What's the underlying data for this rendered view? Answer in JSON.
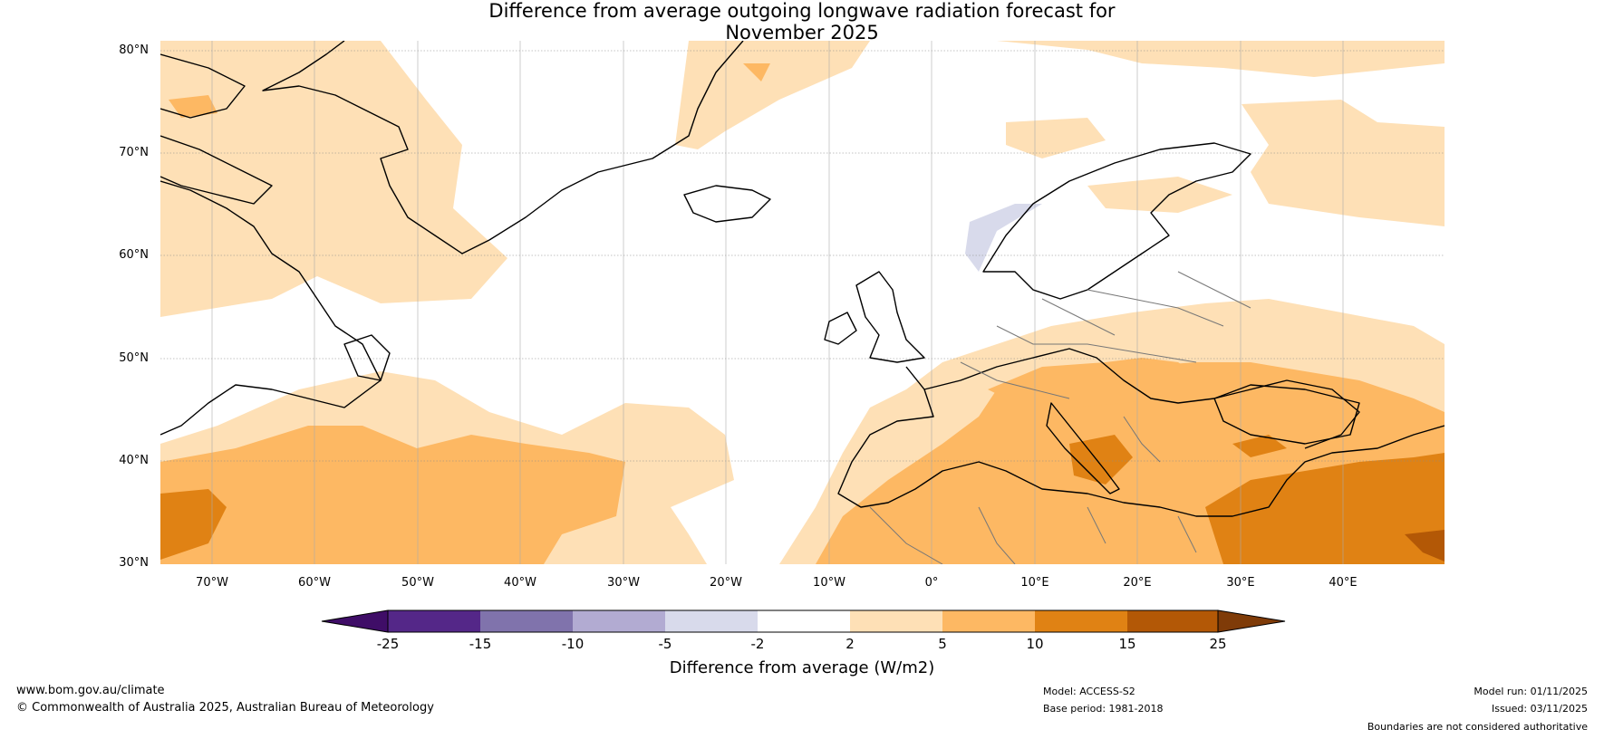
{
  "title_line1": "Difference from average outgoing longwave radiation forecast for",
  "title_line2": "November 2025",
  "lat_labels": [
    "80°N",
    "70°N",
    "60°N",
    "50°N",
    "40°N",
    "30°N"
  ],
  "lon_labels": [
    "70°W",
    "60°W",
    "50°W",
    "40°W",
    "30°W",
    "20°W",
    "10°W",
    "0°",
    "10°E",
    "20°E",
    "30°E",
    "40°E"
  ],
  "colorbar": {
    "title": "Difference from average (W/m2)",
    "ticks": [
      "-25",
      "-15",
      "-10",
      "-5",
      "-2",
      "2",
      "5",
      "10",
      "15",
      "25"
    ],
    "colors": [
      "#3f0d67",
      "#542788",
      "#8073ac",
      "#b2abd2",
      "#d8daeb",
      "#ffffff",
      "#fee0b6",
      "#fdb863",
      "#e08214",
      "#b35806",
      "#7f3b08"
    ]
  },
  "footer": {
    "website": "www.bom.gov.au/climate",
    "copyright": "© Commonwealth of Australia 2025, Australian Bureau of Meteorology",
    "model": "Model: ACCESS-S2",
    "base_period": "Base period: 1981-2018",
    "model_run": "Model run: 01/11/2025",
    "issued": "Issued: 03/11/2025",
    "disclaimer": "Boundaries are not considered authoritative"
  }
}
